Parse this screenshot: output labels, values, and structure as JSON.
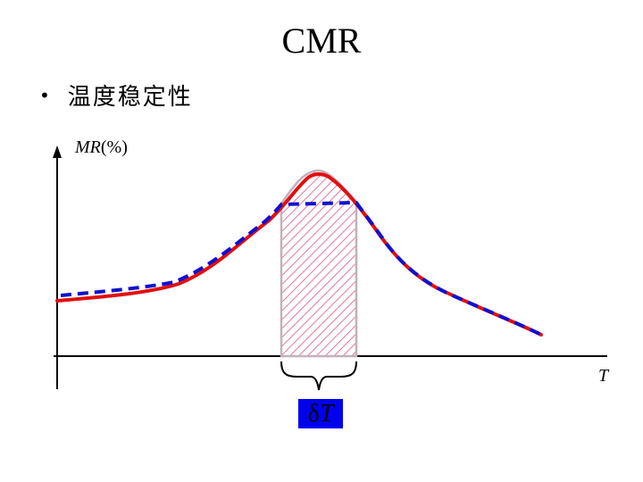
{
  "slide": {
    "title": "CMR",
    "bullet": "•",
    "bullet_text": "温度稳定性"
  },
  "diagram": {
    "y_axis": {
      "label_italic": "MR",
      "label_rest": "(%)"
    },
    "x_axis": {
      "label": "T"
    },
    "interval_label": {
      "symbol": "δ",
      "variable": "T"
    },
    "colors": {
      "solid_curve": "#e01010",
      "dashed_curve": "#1010d0",
      "hatch": "#e07aa0",
      "interval_box": "#0000ee",
      "axis": "#000000"
    }
  }
}
